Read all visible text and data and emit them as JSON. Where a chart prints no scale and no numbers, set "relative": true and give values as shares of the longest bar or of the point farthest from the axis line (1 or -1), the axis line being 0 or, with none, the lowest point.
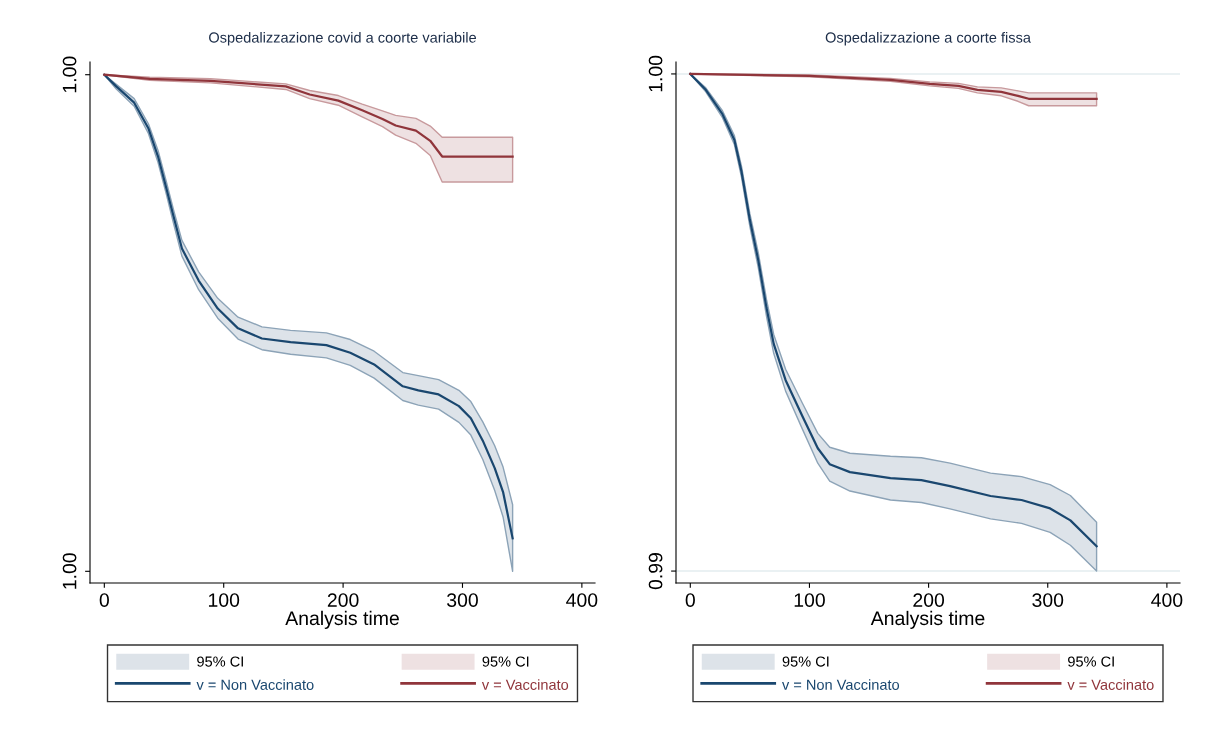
{
  "chart_data": [
    {
      "type": "line",
      "title": "Ospedalizzazione covid a coorte variabile",
      "xlabel": "Analysis time",
      "xlim": [
        -12,
        411
      ],
      "xticks": [
        0,
        100,
        200,
        300,
        400
      ],
      "relative": true,
      "legend": "bottom",
      "annotations": [
        "95% CI",
        "95% CI",
        "1.00",
        "1.00"
      ],
      "series": [
        {
          "name": "v = Non Vaccinato",
          "color": "#1a476f",
          "x": [
            0,
            10,
            25,
            37,
            45,
            52,
            58,
            65,
            79,
            95,
            112,
            132,
            156,
            186,
            206,
            226,
            250,
            263,
            280,
            297,
            307,
            317,
            327,
            334,
            342
          ],
          "values": [
            1.0,
            0.977,
            0.945,
            0.894,
            0.839,
            0.776,
            0.721,
            0.658,
            0.595,
            0.54,
            0.501,
            0.481,
            0.474,
            0.468,
            0.453,
            0.43,
            0.387,
            0.379,
            0.371,
            0.348,
            0.324,
            0.28,
            0.226,
            0.179,
            0.088
          ],
          "lower": [
            1.0,
            0.972,
            0.938,
            0.884,
            0.827,
            0.764,
            0.707,
            0.643,
            0.577,
            0.521,
            0.48,
            0.459,
            0.45,
            0.443,
            0.428,
            0.403,
            0.359,
            0.35,
            0.342,
            0.316,
            0.291,
            0.243,
            0.182,
            0.13,
            0.023
          ],
          "upper": [
            1.0,
            0.981,
            0.953,
            0.903,
            0.851,
            0.789,
            0.734,
            0.674,
            0.612,
            0.56,
            0.523,
            0.504,
            0.497,
            0.492,
            0.479,
            0.456,
            0.414,
            0.408,
            0.4,
            0.379,
            0.357,
            0.317,
            0.27,
            0.228,
            0.154
          ]
        },
        {
          "name": "v = Vaccinato",
          "color": "#90353b",
          "x": [
            0,
            38,
            89,
            152,
            172,
            196,
            216,
            233,
            244,
            261,
            273,
            283,
            342
          ],
          "values": [
            1.0,
            0.992,
            0.988,
            0.977,
            0.961,
            0.949,
            0.93,
            0.913,
            0.9,
            0.89,
            0.87,
            0.839,
            0.839
          ],
          "lower": [
            1.0,
            0.989,
            0.984,
            0.971,
            0.953,
            0.94,
            0.917,
            0.898,
            0.881,
            0.865,
            0.841,
            0.789,
            0.789
          ],
          "upper": [
            1.0,
            0.995,
            0.992,
            0.982,
            0.969,
            0.959,
            0.942,
            0.929,
            0.92,
            0.914,
            0.899,
            0.877,
            0.877
          ]
        }
      ]
    },
    {
      "type": "line",
      "title": "Ospedalizzazione a coorte fissa",
      "xlabel": "Analysis time",
      "xlim": [
        -12,
        411
      ],
      "xticks": [
        0,
        100,
        200,
        300,
        400
      ],
      "ylim": [
        0.98976,
        1.00024
      ],
      "yticks": [
        {
          "value": 0.99,
          "label": "0.99"
        },
        {
          "value": 1.0,
          "label": "1.00"
        }
      ],
      "grid": "y",
      "legend": "bottom",
      "annotations": [
        "95% CI",
        "95% CI"
      ],
      "series": [
        {
          "name": "v = Non Vaccinato",
          "color": "#1a476f",
          "x": [
            0,
            13,
            27,
            37,
            43,
            50,
            57,
            64,
            70,
            80,
            94,
            107,
            117,
            134,
            168,
            194,
            218,
            252,
            278,
            302,
            319,
            341
          ],
          "values": [
            1.0,
            0.99968,
            0.99919,
            0.99867,
            0.99803,
            0.99706,
            0.99626,
            0.99529,
            0.99457,
            0.99384,
            0.99312,
            0.99247,
            0.99215,
            0.99199,
            0.99187,
            0.99183,
            0.99171,
            0.99151,
            0.99143,
            0.99126,
            0.99102,
            0.9905
          ],
          "lower": [
            1.0,
            0.99964,
            0.99912,
            0.99858,
            0.99792,
            0.99693,
            0.99611,
            0.99512,
            0.99438,
            0.99362,
            0.99286,
            0.99217,
            0.99181,
            0.99161,
            0.99143,
            0.99138,
            0.99125,
            0.99105,
            0.99096,
            0.99078,
            0.99052,
            0.99
          ],
          "upper": [
            1.0,
            0.99972,
            0.99926,
            0.99876,
            0.99814,
            0.99719,
            0.99641,
            0.99546,
            0.99476,
            0.99406,
            0.99338,
            0.99277,
            0.99249,
            0.99237,
            0.99231,
            0.99228,
            0.99217,
            0.99197,
            0.9919,
            0.99174,
            0.99152,
            0.99098
          ]
        },
        {
          "name": "v = Vaccinato",
          "color": "#90353b",
          "x": [
            0,
            100,
            168,
            201,
            225,
            241,
            261,
            275,
            284,
            341
          ],
          "values": [
            1.0,
            0.99996,
            0.99988,
            0.9998,
            0.99976,
            0.99968,
            0.99964,
            0.99956,
            0.9995,
            0.9995
          ],
          "lower": [
            1.0,
            0.99994,
            0.99985,
            0.99976,
            0.99971,
            0.99962,
            0.99956,
            0.99945,
            0.99936,
            0.99936
          ],
          "upper": [
            1.0,
            0.99998,
            0.99991,
            0.99984,
            0.99981,
            0.99974,
            0.99972,
            0.99966,
            0.99962,
            0.99962
          ]
        }
      ]
    }
  ]
}
